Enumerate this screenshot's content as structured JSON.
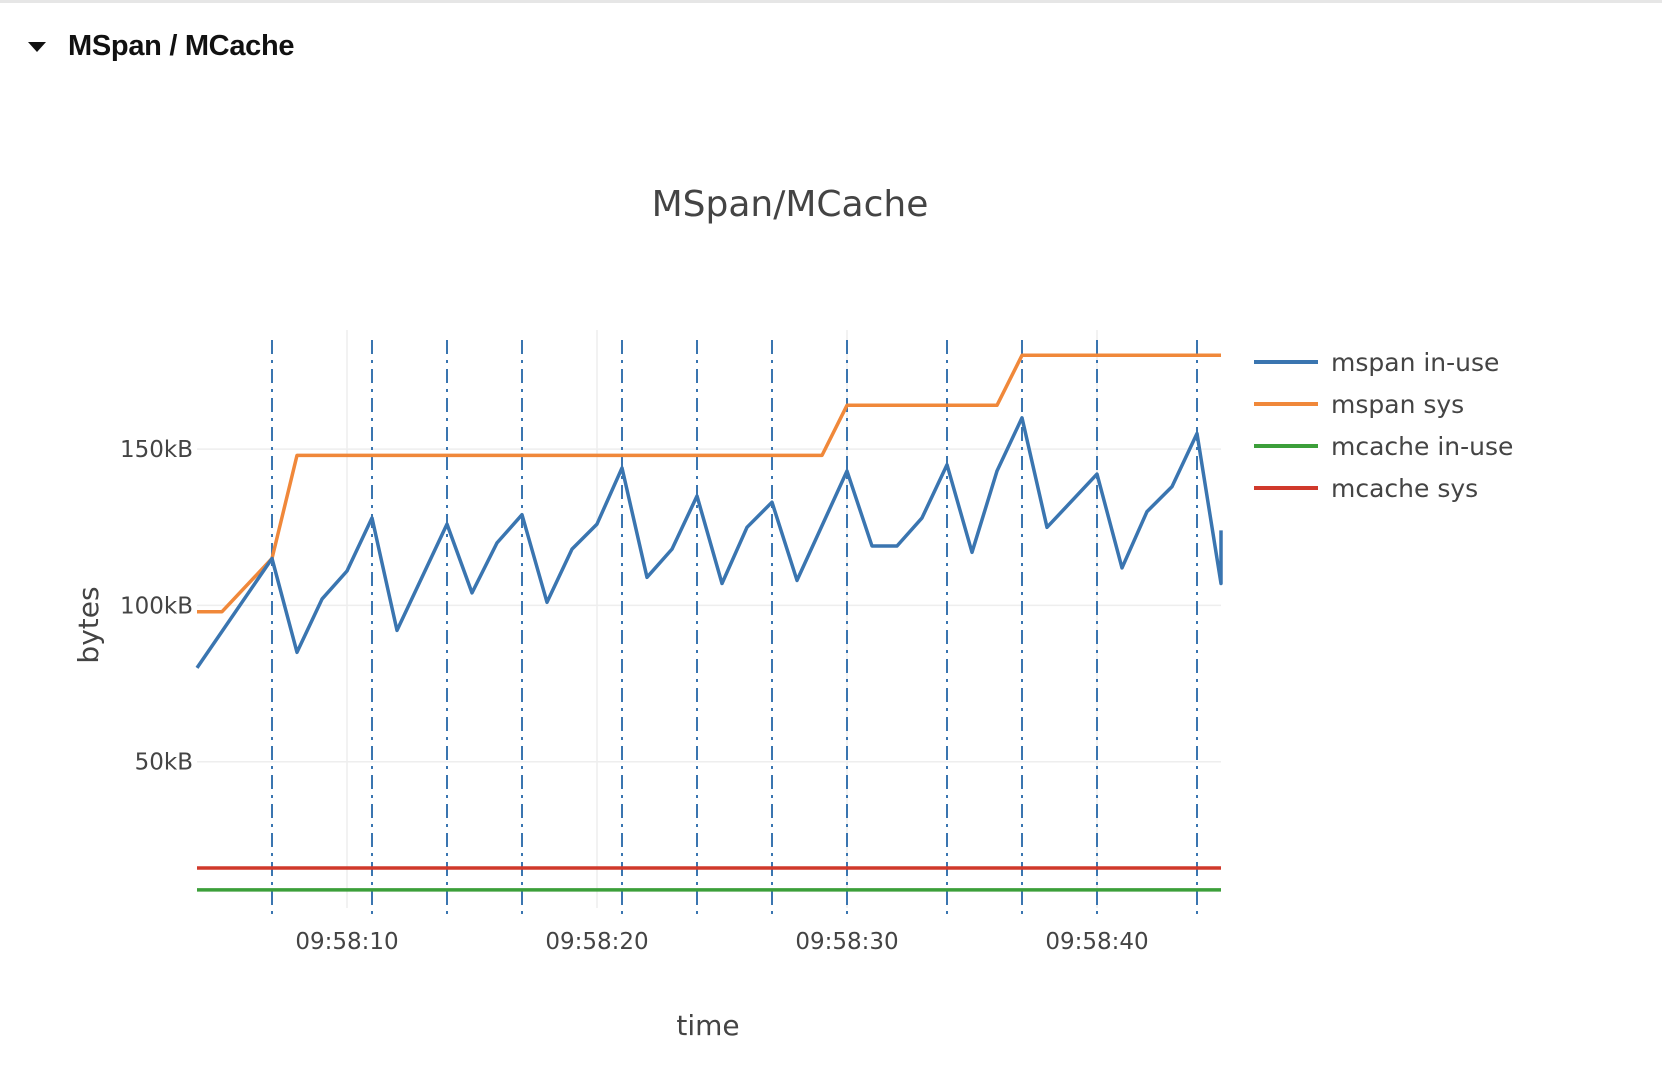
{
  "section": {
    "title": "MSpan / MCache"
  },
  "chart_data": {
    "type": "line",
    "title": "MSpan/MCache",
    "xlabel": "time",
    "ylabel": "bytes",
    "xlim": [
      "09:58:04",
      "09:58:45"
    ],
    "ylim": [
      0,
      190
    ],
    "y_unit": "kB",
    "x_ticks": [
      "09:58:10",
      "09:58:20",
      "09:58:30",
      "09:58:40"
    ],
    "y_ticks": [
      "50kB",
      "100kB",
      "150kB"
    ],
    "grid": true,
    "legend_position": "right",
    "series": [
      {
        "name": "mspan in-use",
        "color": "#3a75b0",
        "points": [
          [
            "09:58:04",
            80
          ],
          [
            "09:58:07",
            115
          ],
          [
            "09:58:08",
            85
          ],
          [
            "09:58:09",
            102
          ],
          [
            "09:58:10",
            111
          ],
          [
            "09:58:11",
            128
          ],
          [
            "09:58:12",
            92
          ],
          [
            "09:58:14",
            126
          ],
          [
            "09:58:15",
            104
          ],
          [
            "09:58:16",
            120
          ],
          [
            "09:58:17",
            129
          ],
          [
            "09:58:18",
            101
          ],
          [
            "09:58:19",
            118
          ],
          [
            "09:58:20",
            126
          ],
          [
            "09:58:21",
            144
          ],
          [
            "09:58:22",
            109
          ],
          [
            "09:58:23",
            118
          ],
          [
            "09:58:24",
            135
          ],
          [
            "09:58:25",
            107
          ],
          [
            "09:58:26",
            125
          ],
          [
            "09:58:27",
            133
          ],
          [
            "09:58:28",
            108
          ],
          [
            "09:58:30",
            143
          ],
          [
            "09:58:31",
            119
          ],
          [
            "09:58:32",
            119
          ],
          [
            "09:58:33",
            128
          ],
          [
            "09:58:34",
            145
          ],
          [
            "09:58:35",
            117
          ],
          [
            "09:58:36",
            143
          ],
          [
            "09:58:37",
            160
          ],
          [
            "09:58:38",
            125
          ],
          [
            "09:58:40",
            142
          ],
          [
            "09:58:41",
            112
          ],
          [
            "09:58:42",
            130
          ],
          [
            "09:58:43",
            138
          ],
          [
            "09:58:44",
            155
          ],
          [
            "09:58:45",
            107
          ],
          [
            "09:58:46",
            124
          ]
        ]
      },
      {
        "name": "mspan sys",
        "color": "#f0883a",
        "points": [
          [
            "09:58:04",
            98
          ],
          [
            "09:58:05",
            98
          ],
          [
            "09:58:07",
            115
          ],
          [
            "09:58:08",
            148
          ],
          [
            "09:58:29",
            148
          ],
          [
            "09:58:30",
            164
          ],
          [
            "09:58:36",
            164
          ],
          [
            "09:58:37",
            180
          ],
          [
            "09:58:45",
            180
          ]
        ]
      },
      {
        "name": "mcache in-use",
        "color": "#3c9f3a",
        "points": [
          [
            "09:58:04",
            9
          ],
          [
            "09:58:45",
            9
          ]
        ]
      },
      {
        "name": "mcache sys",
        "color": "#d0392b",
        "points": [
          [
            "09:58:04",
            16
          ],
          [
            "09:58:45",
            16
          ]
        ]
      }
    ],
    "event_markers": {
      "style": "dash-dot vertical lines",
      "color": "#3a75b0",
      "times": [
        "09:58:07",
        "09:58:11",
        "09:58:14",
        "09:58:17",
        "09:58:21",
        "09:58:24",
        "09:58:27",
        "09:58:30",
        "09:58:34",
        "09:58:37",
        "09:58:40",
        "09:58:44"
      ]
    },
    "colors": {
      "grid": "#eeeeee",
      "text": "#444444"
    }
  }
}
